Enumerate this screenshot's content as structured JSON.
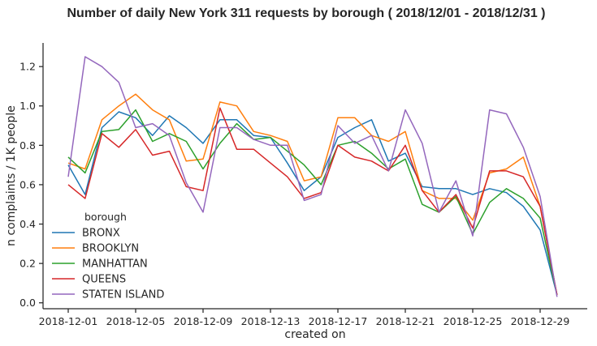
{
  "chart_data": {
    "type": "line",
    "title": "Number of daily New York 311 requests by borough  ( 2018/12/01 - 2018/12/31 )",
    "xlabel": "created on",
    "ylabel": "n complaints / 1K people",
    "ylim": [
      -0.03,
      1.32
    ],
    "yticks": [
      0.0,
      0.2,
      0.4,
      0.6,
      0.8,
      1.0,
      1.2
    ],
    "ytick_labels": [
      "0.0",
      "0.2",
      "0.4",
      "0.6",
      "0.8",
      "1.0",
      "1.2"
    ],
    "x_start": "2018-12-01",
    "xtick_labels": [
      "2018-12-01",
      "2018-12-05",
      "2018-12-09",
      "2018-12-13",
      "2018-12-17",
      "2018-12-21",
      "2018-12-25",
      "2018-12-29"
    ],
    "grid": false,
    "legend": {
      "title": "borough",
      "position": "lower-left"
    },
    "x": [
      "2018-12-01",
      "2018-12-02",
      "2018-12-03",
      "2018-12-04",
      "2018-12-05",
      "2018-12-06",
      "2018-12-07",
      "2018-12-08",
      "2018-12-09",
      "2018-12-10",
      "2018-12-11",
      "2018-12-12",
      "2018-12-13",
      "2018-12-14",
      "2018-12-15",
      "2018-12-16",
      "2018-12-17",
      "2018-12-18",
      "2018-12-19",
      "2018-12-20",
      "2018-12-21",
      "2018-12-22",
      "2018-12-23",
      "2018-12-24",
      "2018-12-25",
      "2018-12-26",
      "2018-12-27",
      "2018-12-28",
      "2018-12-29",
      "2018-12-30",
      "2018-12-31"
    ],
    "series": [
      {
        "name": "BRONX",
        "color": "#1f77b4",
        "values": [
          0.7,
          0.55,
          0.89,
          0.97,
          0.94,
          0.85,
          0.95,
          0.89,
          0.81,
          0.93,
          0.93,
          0.85,
          0.84,
          0.71,
          0.57,
          0.64,
          0.84,
          0.89,
          0.93,
          0.72,
          0.76,
          0.59,
          0.58,
          0.58,
          0.55,
          0.58,
          0.56,
          0.49,
          0.37,
          0.04,
          null
        ]
      },
      {
        "name": "BROOKLYN",
        "color": "#ff7f0e",
        "values": [
          0.71,
          0.68,
          0.93,
          1.0,
          1.06,
          0.98,
          0.93,
          0.72,
          0.73,
          1.02,
          1.0,
          0.87,
          0.85,
          0.82,
          0.62,
          0.64,
          0.94,
          0.94,
          0.85,
          0.82,
          0.87,
          0.57,
          0.53,
          0.53,
          0.42,
          0.66,
          0.68,
          0.74,
          0.49,
          0.04,
          null
        ]
      },
      {
        "name": "MANHATTAN",
        "color": "#2ca02c",
        "values": [
          0.74,
          0.66,
          0.87,
          0.88,
          0.98,
          0.82,
          0.86,
          0.82,
          0.68,
          0.81,
          0.91,
          0.83,
          0.84,
          0.77,
          0.7,
          0.6,
          0.8,
          0.82,
          0.76,
          0.68,
          0.73,
          0.5,
          0.46,
          0.54,
          0.35,
          0.51,
          0.58,
          0.53,
          0.43,
          0.04,
          null
        ]
      },
      {
        "name": "QUEENS",
        "color": "#d62728",
        "values": [
          0.6,
          0.53,
          0.86,
          0.79,
          0.88,
          0.75,
          0.77,
          0.59,
          0.57,
          0.99,
          0.78,
          0.78,
          0.71,
          0.64,
          0.53,
          0.56,
          0.8,
          0.74,
          0.72,
          0.67,
          0.8,
          0.57,
          0.46,
          0.55,
          0.38,
          0.67,
          0.67,
          0.64,
          0.49,
          0.04,
          null
        ]
      },
      {
        "name": "STATEN ISLAND",
        "color": "#9467bd",
        "values": [
          0.64,
          1.25,
          1.2,
          1.12,
          0.89,
          0.91,
          0.85,
          0.61,
          0.46,
          0.89,
          0.89,
          0.83,
          0.8,
          0.8,
          0.52,
          0.55,
          0.9,
          0.81,
          0.85,
          0.67,
          0.98,
          0.81,
          0.46,
          0.62,
          0.34,
          0.98,
          0.96,
          0.79,
          0.54,
          0.03,
          null
        ]
      }
    ]
  }
}
